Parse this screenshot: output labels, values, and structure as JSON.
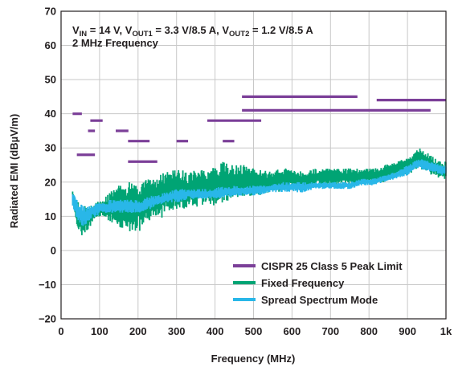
{
  "chart_data": {
    "type": "line",
    "title": "",
    "annotation_line1": {
      "parts": [
        {
          "text": "V",
          "sub": false
        },
        {
          "text": "IN",
          "sub": true
        },
        {
          "text": " = 14 V, V",
          "sub": false
        },
        {
          "text": "OUT1",
          "sub": true
        },
        {
          "text": " = 3.3 V/8.5 A, V",
          "sub": false
        },
        {
          "text": "OUT2",
          "sub": true
        },
        {
          "text": " = 1.2 V/8.5 A",
          "sub": false
        }
      ]
    },
    "annotation_line2": "2 MHz Frequency",
    "xlabel": "Frequency (MHz)",
    "ylabel": "Radiated EMI (dBµV/m)",
    "xlim": [
      0,
      1000
    ],
    "ylim": [
      -20,
      70
    ],
    "x_ticks": [
      0,
      100,
      200,
      300,
      400,
      500,
      600,
      700,
      800,
      900,
      1000
    ],
    "x_tick_labels": [
      "0",
      "100",
      "200",
      "300",
      "400",
      "500",
      "600",
      "700",
      "800",
      "900",
      "1k"
    ],
    "y_ticks": [
      -20,
      -10,
      0,
      10,
      20,
      30,
      40,
      50,
      60,
      70
    ],
    "y_tick_labels": [
      "−20",
      "−10",
      "0",
      "10",
      "20",
      "30",
      "40",
      "50",
      "60",
      "70"
    ],
    "grid": true,
    "legend_position": "bottom-right",
    "colors": {
      "limit": "#7b3f98",
      "fixed": "#00a474",
      "spread": "#29b7e8",
      "grid": "#c8c8c8",
      "axis": "#231f20"
    },
    "series": [
      {
        "name": "CISPR 25 Class 5 Peak Limit",
        "kind": "limit_segments",
        "segments": [
          {
            "x": [
              30,
              54
            ],
            "y": 40
          },
          {
            "x": [
              41,
              88
            ],
            "y": 28
          },
          {
            "x": [
              70,
              88
            ],
            "y": 35
          },
          {
            "x": [
              76,
              108
            ],
            "y": 38
          },
          {
            "x": [
              142,
              175
            ],
            "y": 35
          },
          {
            "x": [
              174,
              230
            ],
            "y": 32
          },
          {
            "x": [
              174,
              250
            ],
            "y": 26
          },
          {
            "x": [
              300,
              330
            ],
            "y": 32
          },
          {
            "x": [
              380,
              520
            ],
            "y": 38
          },
          {
            "x": [
              420,
              450
            ],
            "y": 32
          },
          {
            "x": [
              470,
              770
            ],
            "y": 45
          },
          {
            "x": [
              470,
              960
            ],
            "y": 41
          },
          {
            "x": [
              820,
              1000
            ],
            "y": 44
          }
        ]
      },
      {
        "name": "Fixed Frequency",
        "kind": "band",
        "x": [
          30,
          45,
          60,
          75,
          90,
          110,
          130,
          150,
          170,
          190,
          210,
          230,
          250,
          270,
          300,
          330,
          360,
          390,
          420,
          450,
          480,
          510,
          540,
          570,
          600,
          630,
          660,
          690,
          720,
          750,
          780,
          810,
          840,
          870,
          900,
          930,
          960,
          990,
          1000
        ],
        "low": [
          15,
          5,
          4,
          7,
          9,
          10,
          8,
          7,
          6,
          5,
          6,
          8,
          9,
          10,
          12,
          12,
          13,
          13,
          14,
          15,
          16,
          16,
          17,
          17,
          18,
          18,
          19,
          19,
          19,
          19,
          19,
          20,
          20,
          22,
          22,
          24,
          22,
          21,
          20
        ],
        "high": [
          18,
          14,
          13,
          13,
          14,
          15,
          18,
          19,
          20,
          20,
          21,
          21,
          22,
          23,
          24,
          23,
          24,
          24,
          26,
          25,
          25,
          24,
          23,
          24,
          24,
          23,
          24,
          24,
          24,
          24,
          24,
          24,
          25,
          26,
          27,
          30,
          28,
          26,
          26
        ]
      },
      {
        "name": "Spread Spectrum Mode",
        "kind": "band",
        "x": [
          30,
          45,
          60,
          75,
          90,
          110,
          130,
          150,
          170,
          190,
          210,
          230,
          250,
          270,
          300,
          330,
          360,
          390,
          420,
          450,
          480,
          510,
          540,
          570,
          600,
          630,
          660,
          690,
          720,
          750,
          780,
          810,
          840,
          870,
          900,
          930,
          960,
          990,
          1000
        ],
        "low": [
          13,
          8,
          7,
          9,
          10,
          11,
          11,
          11,
          11,
          11,
          11,
          12,
          13,
          14,
          14,
          15,
          15,
          15,
          15,
          16,
          16,
          16,
          17,
          17,
          17,
          17,
          18,
          18,
          18,
          18,
          19,
          19,
          20,
          21,
          22,
          24,
          23,
          22,
          22
        ],
        "high": [
          18,
          14,
          13,
          13,
          14,
          14,
          15,
          15,
          15,
          15,
          15,
          16,
          16,
          17,
          18,
          18,
          18,
          18,
          19,
          19,
          19,
          19,
          19,
          20,
          20,
          20,
          20,
          20,
          20,
          20,
          21,
          21,
          22,
          23,
          25,
          27,
          26,
          25,
          25
        ]
      }
    ]
  }
}
